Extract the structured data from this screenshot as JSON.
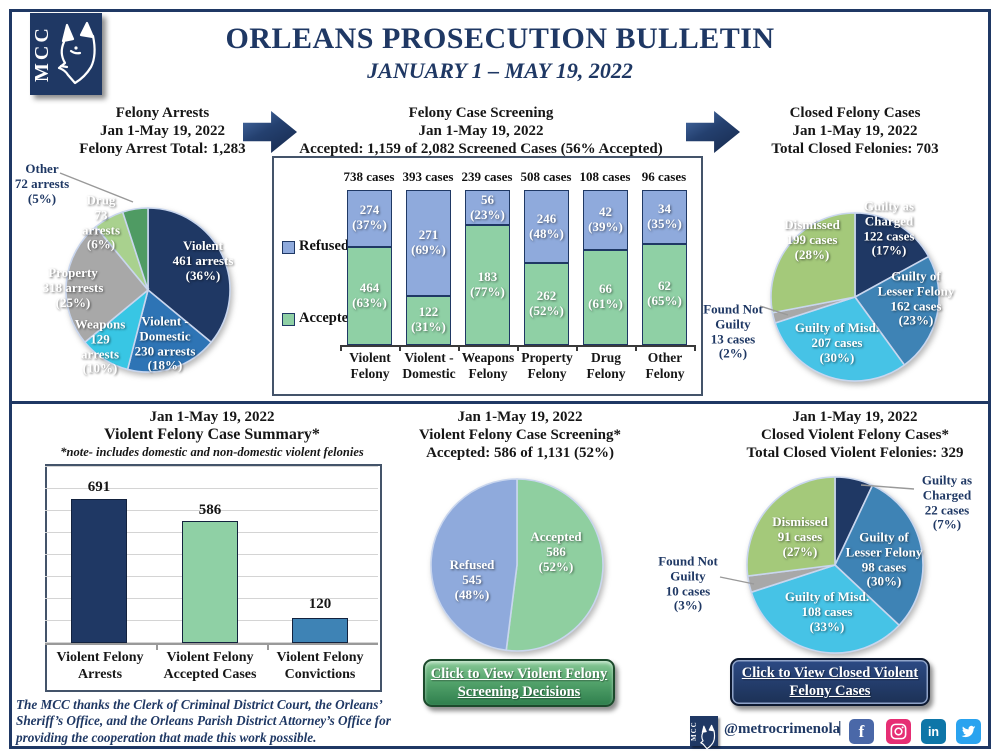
{
  "header": {
    "logo_text": "MCC",
    "title": "ORLEANS PROSECUTION BULLETIN",
    "subtitle": "JANUARY 1 – MAY 19, 2022"
  },
  "panels": {
    "felony_arrests": {
      "title": "Felony Arrests",
      "date_range": "Jan 1-May 19, 2022",
      "total": "Felony Arrest Total: 1,283"
    },
    "felony_screening": {
      "title": "Felony Case Screening",
      "date_range": "Jan 1-May 19, 2022",
      "total": "Accepted: 1,159 of 2,082 Screened Cases (56% Accepted)"
    },
    "closed_felony": {
      "title": "Closed Felony Cases",
      "date_range": "Jan 1-May 19, 2022",
      "total": "Total Closed Felonies: 703"
    },
    "violent_summary": {
      "date_range": "Jan 1-May 19, 2022",
      "title": "Violent Felony Case Summary*",
      "note": "*note- includes domestic and non-domestic violent felonies"
    },
    "violent_screening": {
      "date_range": "Jan 1-May 19, 2022",
      "title": "Violent Felony Case Screening*",
      "total": "Accepted: 586 of 1,131 (52%)",
      "button_label": "Click to View Violent Felony\nScreening Decisions"
    },
    "closed_violent": {
      "date_range": "Jan 1-May 19, 2022",
      "title": "Closed Violent Felony Cases*",
      "total": "Total Closed Violent Felonies: 329",
      "button_label": "Click to View Closed Violent\nFelony Cases"
    }
  },
  "footer": {
    "thanks": "The MCC thanks the Clerk of Criminal District Court, the Orleans’ Sheriff’s Office, and the Orleans Parish District Attorney’s Office for providing the cooperation that made this work possible.",
    "handle": "@metrocrimenola",
    "separator": "|",
    "facebook_glyph": "f",
    "linkedin_glyph": "in"
  },
  "chart_data": [
    {
      "id": "felony-arrests-pie",
      "type": "pie",
      "title": "Felony Arrests",
      "subtitle": "Jan 1-May 19, 2022",
      "total": 1283,
      "slices": [
        {
          "name": "Violent",
          "label": "Violent",
          "count_label": "461 arrests",
          "pct_label": "(36%)",
          "value": 461,
          "pct": 36,
          "color": "#1F3864"
        },
        {
          "name": "Violent - Domestic",
          "label": "Violent -\nDomestic",
          "count_label": "230 arrests",
          "pct_label": "(18%)",
          "value": 230,
          "pct": 18,
          "color": "#2E74B5"
        },
        {
          "name": "Weapons",
          "label": "Weapons",
          "count_label": "129\narrests",
          "pct_label": "(10%)",
          "value": 129,
          "pct": 10,
          "color": "#38C6E4"
        },
        {
          "name": "Property",
          "label": "Property",
          "count_label": "318 arrests",
          "pct_label": "(25%)",
          "value": 318,
          "pct": 25,
          "color": "#A8A8A8"
        },
        {
          "name": "Drug",
          "label": "Drug",
          "count_label": "73\narrests",
          "pct_label": "(6%)",
          "value": 73,
          "pct": 6,
          "color": "#A9D18E"
        },
        {
          "name": "Other",
          "label": "Other",
          "count_label": "72 arrests",
          "pct_label": "(5%)",
          "value": 72,
          "pct": 5,
          "color": "#4F9B63"
        }
      ]
    },
    {
      "id": "felony-case-screening",
      "type": "stacked-bar",
      "title": "Felony Case Screening",
      "subtitle": "Jan 1-May 19, 2022",
      "summary": "Accepted: 1,159 of 2,082 Screened Cases (56% Accepted)",
      "legend": [
        {
          "name": "Refused",
          "color": "#8FAADC"
        },
        {
          "name": "Accepted",
          "color": "#8FD0A5"
        }
      ],
      "categories": [
        "Violent\nFelony",
        "Violent -\nDomestic",
        "Weapons\nFelony",
        "Property\nFelony",
        "Drug\nFelony",
        "Other\nFelony"
      ],
      "bars": [
        {
          "total": 738,
          "total_label": "738 cases",
          "refused": 274,
          "refused_pct": 37,
          "refused_label": "274\n(37%)",
          "accepted": 464,
          "accepted_pct": 63,
          "accepted_label": "464\n(63%)"
        },
        {
          "total": 393,
          "total_label": "393 cases",
          "refused": 271,
          "refused_pct": 69,
          "refused_label": "271\n(69%)",
          "accepted": 122,
          "accepted_pct": 31,
          "accepted_label": "122\n(31%)"
        },
        {
          "total": 239,
          "total_label": "239 cases",
          "refused": 56,
          "refused_pct": 23,
          "refused_label": "56\n(23%)",
          "accepted": 183,
          "accepted_pct": 77,
          "accepted_label": "183\n(77%)"
        },
        {
          "total": 508,
          "total_label": "508 cases",
          "refused": 246,
          "refused_pct": 48,
          "refused_label": "246\n(48%)",
          "accepted": 262,
          "accepted_pct": 52,
          "accepted_label": "262\n(52%)"
        },
        {
          "total": 108,
          "total_label": "108 cases",
          "refused": 42,
          "refused_pct": 39,
          "refused_label": "42\n(39%)",
          "accepted": 66,
          "accepted_pct": 61,
          "accepted_label": "66\n(61%)"
        },
        {
          "total": 96,
          "total_label": "96 cases",
          "refused": 34,
          "refused_pct": 35,
          "refused_label": "34\n(35%)",
          "accepted": 62,
          "accepted_pct": 65,
          "accepted_label": "62\n(65%)"
        }
      ]
    },
    {
      "id": "closed-felony-pie",
      "type": "pie",
      "title": "Closed Felony Cases",
      "subtitle": "Jan 1-May 19, 2022",
      "total": 703,
      "slices": [
        {
          "name": "Guilty as Charged",
          "label": "Guilty as\nCharged",
          "count_label": "122 cases",
          "pct_label": "(17%)",
          "value": 122,
          "pct": 17,
          "color": "#1F3864"
        },
        {
          "name": "Guilty of Lesser Felony",
          "label": "Guilty of\nLesser Felony",
          "count_label": "162 cases",
          "pct_label": "(23%)",
          "value": 162,
          "pct": 23,
          "color": "#3E83B5"
        },
        {
          "name": "Guilty of Misd.",
          "label": "Guilty of Misd.",
          "count_label": "207 cases",
          "pct_label": "(30%)",
          "value": 207,
          "pct": 30,
          "color": "#46C3E6"
        },
        {
          "name": "Found Not Guilty",
          "label": "Found Not\nGuilty",
          "count_label": "13 cases",
          "pct_label": "(2%)",
          "value": 13,
          "pct": 2,
          "color": "#A8A8A8"
        },
        {
          "name": "Dismissed",
          "label": "Dismissed",
          "count_label": "199 cases",
          "pct_label": "(28%)",
          "value": 199,
          "pct": 28,
          "color": "#A4C97A"
        }
      ]
    },
    {
      "id": "violent-felony-summary",
      "type": "bar",
      "title": "Violent Felony Case Summary*",
      "categories": [
        "Violent Felony\nArrests",
        "Violent Felony\nAccepted Cases",
        "Violent Felony\nConvictions"
      ],
      "values": [
        691,
        586,
        120
      ],
      "colors": [
        "#1F3864",
        "#8FD0A5",
        "#3E83B5"
      ],
      "grid": true
    },
    {
      "id": "violent-screening-pie",
      "type": "pie",
      "title": "Violent Felony Case Screening*",
      "subtitle": "Jan 1-May 19, 2022",
      "total": 1131,
      "slices": [
        {
          "name": "Accepted",
          "label": "Accepted",
          "count_label": "586",
          "pct_label": "(52%)",
          "value": 586,
          "pct": 52,
          "color": "#8FCFA0"
        },
        {
          "name": "Refused",
          "label": "Refused",
          "count_label": "545",
          "pct_label": "(48%)",
          "value": 545,
          "pct": 48,
          "color": "#8FAADC"
        }
      ]
    },
    {
      "id": "closed-violent-pie",
      "type": "pie",
      "title": "Closed Violent Felony Cases*",
      "subtitle": "Jan 1-May 19, 2022",
      "total": 329,
      "slices": [
        {
          "name": "Guilty as Charged",
          "label": "Guilty as\nCharged",
          "count_label": "22 cases",
          "pct_label": "(7%)",
          "value": 22,
          "pct": 7,
          "color": "#1F3864"
        },
        {
          "name": "Guilty of Lesser Felony",
          "label": "Guilty of\nLesser Felony",
          "count_label": "98 cases",
          "pct_label": "(30%)",
          "value": 98,
          "pct": 30,
          "color": "#3E83B5"
        },
        {
          "name": "Guilty of Misd.",
          "label": "Guilty of Misd.",
          "count_label": "108 cases",
          "pct_label": "(33%)",
          "value": 108,
          "pct": 33,
          "color": "#46C3E6"
        },
        {
          "name": "Found Not Guilty",
          "label": "Found Not\nGuilty",
          "count_label": "10 cases",
          "pct_label": "(3%)",
          "value": 10,
          "pct": 3,
          "color": "#A8A8A8"
        },
        {
          "name": "Dismissed",
          "label": "Dismissed",
          "count_label": "91 cases",
          "pct_label": "(27%)",
          "value": 91,
          "pct": 27,
          "color": "#A4C97A"
        }
      ]
    }
  ]
}
